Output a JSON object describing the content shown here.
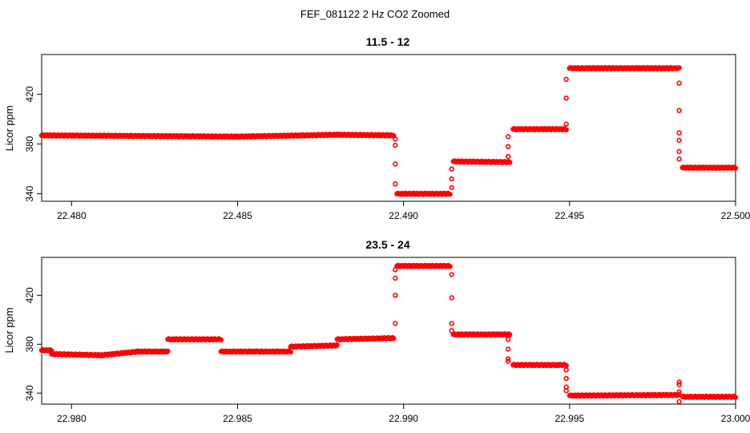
{
  "figure": {
    "title": "FEF_081122  2 Hz CO2 Zoomed"
  },
  "colors": {
    "points": "#ff0000",
    "axis": "#000000"
  },
  "chart_data": [
    {
      "type": "scatter",
      "title": "11.5 - 12",
      "xlabel": "",
      "ylabel": "Licor ppm",
      "xlim": [
        22.4791,
        22.5
      ],
      "ylim": [
        334,
        452
      ],
      "x_ticks": [
        22.48,
        22.485,
        22.49,
        22.495,
        22.5
      ],
      "x_tick_labels": [
        "22.480",
        "22.485",
        "22.490",
        "22.495",
        "22.500"
      ],
      "y_ticks": [
        340,
        380,
        420
      ],
      "y_tick_labels": [
        "340",
        "380",
        "420"
      ],
      "grid": false,
      "marker": "open-circle",
      "segments": [
        {
          "x": [
            22.4791,
            22.485,
            22.488,
            22.4897
          ],
          "y": [
            387,
            386,
            387.5,
            387
          ]
        },
        {
          "x": [
            22.4898,
            22.4914
          ],
          "y": [
            340,
            340
          ]
        },
        {
          "x": [
            22.4915,
            22.4932
          ],
          "y": [
            366,
            365.5
          ]
        },
        {
          "x": [
            22.4933,
            22.4949
          ],
          "y": [
            392,
            392
          ]
        },
        {
          "x": [
            22.495,
            22.4983
          ],
          "y": [
            441,
            441
          ]
        },
        {
          "x": [
            22.4984,
            22.5
          ],
          "y": [
            361,
            361
          ]
        }
      ],
      "transitions": [
        {
          "x": 22.48975,
          "y": [
            384,
            379,
            364,
            348
          ]
        },
        {
          "x": 22.49145,
          "y": [
            345,
            352,
            360
          ]
        },
        {
          "x": 22.49315,
          "y": [
            370,
            378,
            386
          ]
        },
        {
          "x": 22.4949,
          "y": [
            396,
            417,
            432
          ]
        },
        {
          "x": 22.4983,
          "y": [
            429,
            407,
            389,
            383,
            374,
            368
          ]
        }
      ]
    },
    {
      "type": "scatter",
      "title": "23.5 - 24",
      "xlabel": "",
      "ylabel": "Licor ppm",
      "xlim": [
        22.9791,
        23.0
      ],
      "ylim": [
        331,
        451
      ],
      "x_ticks": [
        22.98,
        22.985,
        22.99,
        22.995,
        23.0
      ],
      "x_tick_labels": [
        "22.980",
        "22.985",
        "22.990",
        "22.995",
        "23.000"
      ],
      "y_ticks": [
        340,
        380,
        420
      ],
      "y_tick_labels": [
        "340",
        "380",
        "420"
      ],
      "grid": false,
      "marker": "open-circle",
      "segments": [
        {
          "x": [
            22.9791,
            22.9794
          ],
          "y": [
            375,
            375
          ]
        },
        {
          "x": [
            22.9794,
            22.9809,
            22.982,
            22.9829
          ],
          "y": [
            372,
            371,
            374,
            374
          ]
        },
        {
          "x": [
            22.9829,
            22.9845
          ],
          "y": [
            384,
            384
          ]
        },
        {
          "x": [
            22.9845,
            22.9856,
            22.9866
          ],
          "y": [
            374,
            374,
            374
          ]
        },
        {
          "x": [
            22.9866,
            22.988
          ],
          "y": [
            378,
            379
          ]
        },
        {
          "x": [
            22.988,
            22.9897
          ],
          "y": [
            384,
            385
          ]
        },
        {
          "x": [
            22.9898,
            22.9914
          ],
          "y": [
            444,
            444
          ]
        },
        {
          "x": [
            22.9915,
            22.9932
          ],
          "y": [
            388,
            388
          ]
        },
        {
          "x": [
            22.9933,
            22.9949
          ],
          "y": [
            363,
            363
          ]
        },
        {
          "x": [
            22.995,
            22.9983
          ],
          "y": [
            338,
            338.5
          ]
        },
        {
          "x": [
            22.9984,
            23.0
          ],
          "y": [
            337,
            337
          ]
        }
      ],
      "transitions": [
        {
          "x": 22.98975,
          "y": [
            397,
            420,
            434,
            441
          ]
        },
        {
          "x": 22.99145,
          "y": [
            437,
            418,
            397,
            391
          ]
        },
        {
          "x": 22.99315,
          "y": [
            384,
            376,
            368,
            366
          ]
        },
        {
          "x": 22.9949,
          "y": [
            359,
            352,
            345,
            342
          ]
        },
        {
          "x": 22.9983,
          "y": [
            333,
            341,
            347,
            349
          ]
        }
      ]
    }
  ]
}
